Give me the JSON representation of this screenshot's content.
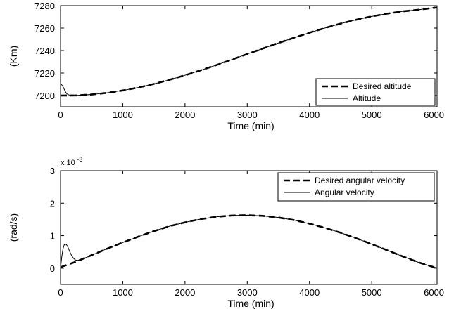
{
  "chart_data": [
    {
      "type": "line",
      "xlabel": "Time (min)",
      "ylabel": "(Km)",
      "xlim": [
        0,
        6050
      ],
      "ylim": [
        7190,
        7280
      ],
      "xticks": [
        0,
        1000,
        2000,
        3000,
        4000,
        5000,
        6000
      ],
      "yticks": [
        7200,
        7220,
        7240,
        7260,
        7280
      ],
      "grid": false,
      "legend": "bottom-right",
      "series": [
        {
          "name": "Desired altitude",
          "style": "dashed",
          "color": "#000000",
          "x": [
            0,
            250,
            500,
            750,
            1000,
            1250,
            1500,
            1750,
            2000,
            2250,
            2500,
            2750,
            3000,
            3250,
            3500,
            3750,
            4000,
            4250,
            4500,
            4750,
            5000,
            5250,
            5500,
            5750,
            6000,
            6050
          ],
          "y": [
            7200.0,
            7200.1,
            7200.9,
            7202.4,
            7204.5,
            7207.1,
            7210.3,
            7214.0,
            7218.0,
            7222.4,
            7227.0,
            7231.9,
            7236.9,
            7241.8,
            7246.7,
            7251.4,
            7255.9,
            7260.1,
            7264.0,
            7267.4,
            7270.4,
            7272.9,
            7274.9,
            7276.3,
            7278.1,
            7278.3
          ]
        },
        {
          "name": "Altitude",
          "style": "solid",
          "color": "#000000",
          "x": [
            0,
            20,
            40,
            60,
            80,
            100,
            130,
            170,
            200,
            250,
            500,
            750,
            1000,
            1250,
            1500,
            1750,
            2000,
            2250,
            2500,
            2750,
            3000,
            3250,
            3500,
            3750,
            4000,
            4250,
            4500,
            4750,
            5000,
            5250,
            5500,
            5750,
            6000,
            6050
          ],
          "y": [
            7210.5,
            7209.5,
            7207.8,
            7205.5,
            7203.3,
            7201.6,
            7200.6,
            7200.2,
            7200.1,
            7200.1,
            7200.9,
            7202.4,
            7204.5,
            7207.1,
            7210.3,
            7214.0,
            7218.0,
            7222.4,
            7227.0,
            7231.9,
            7236.9,
            7241.8,
            7246.7,
            7251.4,
            7255.9,
            7260.1,
            7264.0,
            7267.4,
            7270.4,
            7272.9,
            7274.9,
            7276.3,
            7278.1,
            7278.3
          ]
        }
      ]
    },
    {
      "type": "line",
      "xlabel": "Time (min)",
      "ylabel": "(rad/s)",
      "exponent_label": "x 10",
      "exponent_power": "-3",
      "xlim": [
        0,
        6050
      ],
      "ylim": [
        -0.5,
        3
      ],
      "xticks": [
        0,
        1000,
        2000,
        3000,
        4000,
        5000,
        6000
      ],
      "yticks": [
        0,
        1,
        2,
        3
      ],
      "grid": false,
      "legend": "top-right",
      "series": [
        {
          "name": "Desired angular velocity",
          "style": "dashed",
          "color": "#000000",
          "x": [
            0,
            250,
            500,
            750,
            1000,
            1250,
            1500,
            1750,
            2000,
            2250,
            2500,
            2750,
            3000,
            3250,
            3500,
            3750,
            4000,
            4250,
            4500,
            4750,
            5000,
            5250,
            5500,
            5750,
            6000,
            6050
          ],
          "y": [
            0.03,
            0.2,
            0.4,
            0.6,
            0.79,
            0.97,
            1.14,
            1.29,
            1.41,
            1.51,
            1.58,
            1.62,
            1.63,
            1.61,
            1.56,
            1.48,
            1.37,
            1.24,
            1.09,
            0.92,
            0.74,
            0.55,
            0.36,
            0.18,
            0.03,
            0.01
          ]
        },
        {
          "name": "Angular velocity",
          "style": "solid",
          "color": "#000000",
          "x": [
            0,
            20,
            40,
            60,
            80,
            100,
            120,
            150,
            180,
            210,
            240,
            270,
            300,
            350,
            400,
            500,
            750,
            1000,
            1250,
            1500,
            1750,
            2000,
            2250,
            2500,
            2750,
            3000,
            3250,
            3500,
            3750,
            4000,
            4250,
            4500,
            4750,
            5000,
            5250,
            5500,
            5750,
            6000,
            6050
          ],
          "y": [
            0.0,
            0.35,
            0.6,
            0.72,
            0.74,
            0.71,
            0.64,
            0.5,
            0.38,
            0.3,
            0.25,
            0.24,
            0.25,
            0.28,
            0.32,
            0.4,
            0.6,
            0.79,
            0.97,
            1.14,
            1.29,
            1.41,
            1.51,
            1.58,
            1.62,
            1.63,
            1.61,
            1.56,
            1.48,
            1.37,
            1.24,
            1.09,
            0.92,
            0.74,
            0.55,
            0.36,
            0.18,
            0.03,
            0.01
          ]
        }
      ]
    }
  ]
}
